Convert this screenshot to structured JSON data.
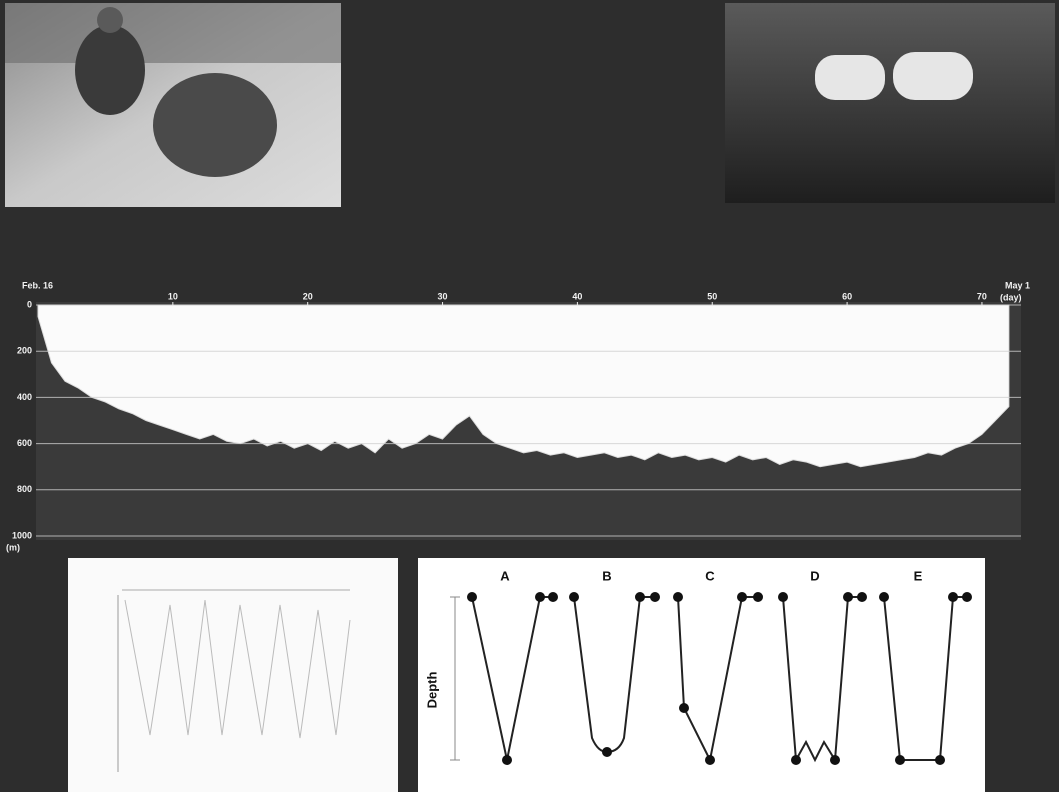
{
  "dive_record": {
    "start_label": "Feb. 16",
    "end_label": "May 1",
    "x_unit": "(day)",
    "y_unit": "(m)",
    "xlim": [
      0,
      72.6
    ],
    "ylim": [
      0,
      1000
    ],
    "xticks": [
      10,
      20,
      30,
      40,
      50,
      60,
      70
    ],
    "yticks": [
      0,
      200,
      400,
      600,
      800,
      1000
    ],
    "x": [
      0,
      1,
      2,
      3,
      4,
      5,
      6,
      7,
      8,
      9,
      10,
      11,
      12,
      13,
      14,
      15,
      16,
      17,
      18,
      19,
      20,
      21,
      22,
      23,
      24,
      25,
      26,
      27,
      28,
      29,
      30,
      31,
      32,
      33,
      34,
      35,
      36,
      37,
      38,
      39,
      40,
      41,
      42,
      43,
      44,
      45,
      46,
      47,
      48,
      49,
      50,
      51,
      52,
      53,
      54,
      55,
      56,
      57,
      58,
      59,
      60,
      61,
      62,
      63,
      64,
      65,
      66,
      67,
      68,
      69,
      70,
      71,
      72
    ],
    "values": [
      50,
      250,
      330,
      360,
      400,
      420,
      450,
      470,
      500,
      520,
      540,
      560,
      580,
      560,
      590,
      600,
      580,
      610,
      590,
      620,
      600,
      630,
      590,
      620,
      600,
      640,
      580,
      620,
      600,
      560,
      580,
      520,
      480,
      560,
      600,
      620,
      640,
      630,
      650,
      640,
      660,
      650,
      640,
      660,
      650,
      670,
      640,
      660,
      650,
      670,
      660,
      680,
      650,
      670,
      660,
      690,
      670,
      680,
      700,
      690,
      680,
      700,
      690,
      680,
      670,
      660,
      640,
      650,
      620,
      600,
      560,
      500,
      440
    ]
  },
  "dive_types": {
    "labels": [
      "A",
      "B",
      "C",
      "D",
      "E"
    ],
    "axis_label": "Depth"
  }
}
